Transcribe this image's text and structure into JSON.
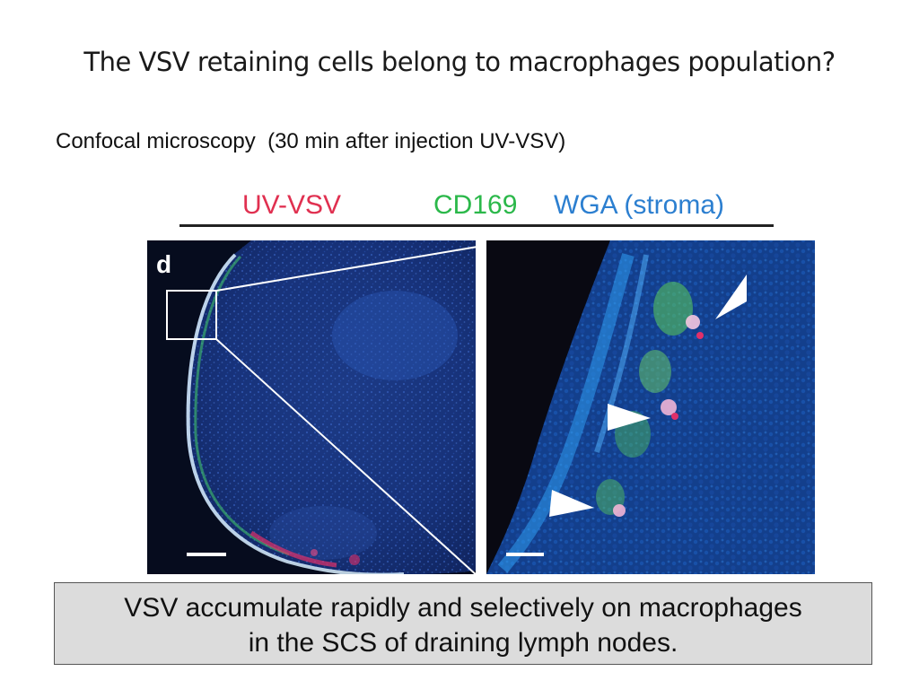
{
  "slide": {
    "title": "The VSV retaining cells belong to macrophages population?",
    "subtitle": "Confocal microscopy  (30 min after injection UV-VSV)"
  },
  "figure": {
    "legend": [
      {
        "label": "UV-VSV",
        "color": "#e03050"
      },
      {
        "label": "CD169",
        "color": "#2bb84a"
      },
      {
        "label": "WGA (stroma)",
        "color": "#2c7fd0"
      }
    ],
    "panel_label": "d"
  },
  "caption": {
    "line1": "VSV accumulate rapidly and selectively on macrophages",
    "line2": "in the SCS of draining lymph nodes."
  }
}
